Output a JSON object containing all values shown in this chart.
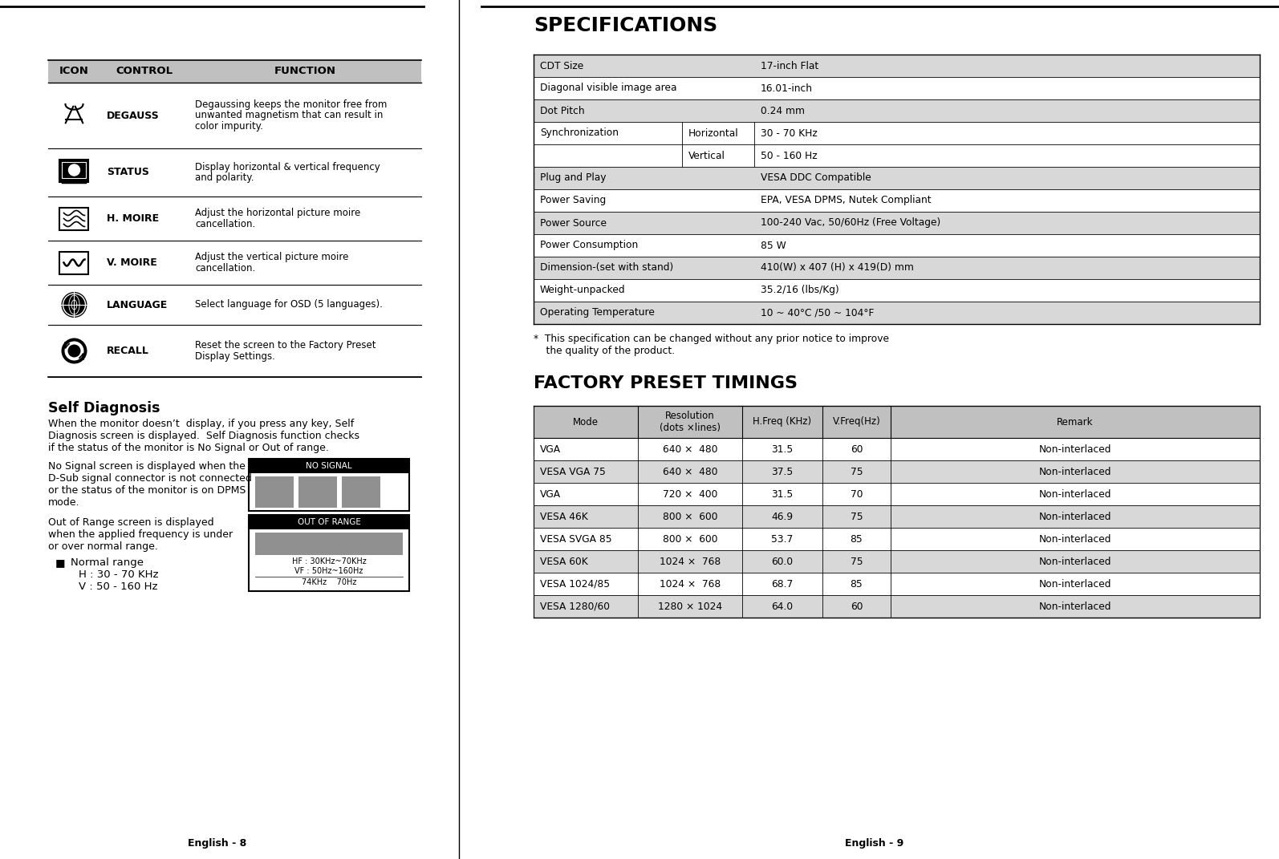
{
  "bg_color": "#ffffff",
  "header_bg": "#c0c0c0",
  "table_bg_alt": "#d8d8d8",
  "specs_title": "SPECIFICATIONS",
  "factory_title": "FACTORY PRESET TIMINGS",
  "self_diag_title": "Self Diagnosis",
  "page_left": "English - 8",
  "page_right": "English - 9",
  "icon_table_header": [
    "ICON",
    "CONTROL",
    "FUNCTION"
  ],
  "icon_rows": [
    {
      "control": "DEGAUSS",
      "function": "Degaussing keeps the monitor free from\nunwanted magnetism that can result in\ncolor impurity."
    },
    {
      "control": "STATUS",
      "function": "Display horizontal & vertical frequency\nand polarity."
    },
    {
      "control": "H. MOIRE",
      "function": "Adjust the horizontal picture moire\ncancellation."
    },
    {
      "control": "V. MOIRE",
      "function": "Adjust the vertical picture moire\ncancellation."
    },
    {
      "control": "LANGUAGE",
      "function": "Select language for OSD (5 languages)."
    },
    {
      "control": "RECALL",
      "function": "Reset the screen to the Factory Preset\nDisplay Settings."
    }
  ],
  "specs_rows": [
    {
      "col1": "CDT Size",
      "col2": "",
      "col3": "17-inch Flat",
      "shaded": true
    },
    {
      "col1": "Diagonal visible image area",
      "col2": "",
      "col3": "16.01-inch",
      "shaded": false
    },
    {
      "col1": "Dot Pitch",
      "col2": "",
      "col3": "0.24 mm",
      "shaded": true
    },
    {
      "col1": "Synchronization",
      "col2": "Horizontal",
      "col3": "30 - 70 KHz",
      "shaded": false
    },
    {
      "col1": "",
      "col2": "Vertical",
      "col3": "50 - 160 Hz",
      "shaded": false
    },
    {
      "col1": "Plug and Play",
      "col2": "",
      "col3": "VESA DDC Compatible",
      "shaded": true
    },
    {
      "col1": "Power Saving",
      "col2": "",
      "col3": "EPA, VESA DPMS, Nutek Compliant",
      "shaded": false
    },
    {
      "col1": "Power Source",
      "col2": "",
      "col3": "100-240 Vac, 50/60Hz (Free Voltage)",
      "shaded": true
    },
    {
      "col1": "Power Consumption",
      "col2": "",
      "col3": "85 W",
      "shaded": false
    },
    {
      "col1": "Dimension-(set with stand)",
      "col2": "",
      "col3": "410(W) x 407 (H) x 419(D) mm",
      "shaded": true
    },
    {
      "col1": "Weight-unpacked",
      "col2": "",
      "col3": "35.2/16 (lbs/Kg)",
      "shaded": false
    },
    {
      "col1": "Operating Temperature",
      "col2": "",
      "col3": "10 ~ 40°C /50 ~ 104°F",
      "shaded": true
    }
  ],
  "factory_rows": [
    {
      "mode": "VGA",
      "res": "640 ×  480",
      "hfreq": "31.5",
      "vfreq": "60",
      "remark": "Non-interlaced",
      "shaded": false
    },
    {
      "mode": "VESA VGA 75",
      "res": "640 ×  480",
      "hfreq": "37.5",
      "vfreq": "75",
      "remark": "Non-interlaced",
      "shaded": true
    },
    {
      "mode": "VGA",
      "res": "720 ×  400",
      "hfreq": "31.5",
      "vfreq": "70",
      "remark": "Non-interlaced",
      "shaded": false
    },
    {
      "mode": "VESA 46K",
      "res": "800 ×  600",
      "hfreq": "46.9",
      "vfreq": "75",
      "remark": "Non-interlaced",
      "shaded": true
    },
    {
      "mode": "VESA SVGA 85",
      "res": "800 ×  600",
      "hfreq": "53.7",
      "vfreq": "85",
      "remark": "Non-interlaced",
      "shaded": false
    },
    {
      "mode": "VESA 60K",
      "res": "1024 ×  768",
      "hfreq": "60.0",
      "vfreq": "75",
      "remark": "Non-interlaced",
      "shaded": true
    },
    {
      "mode": "VESA 1024/85",
      "res": "1024 ×  768",
      "hfreq": "68.7",
      "vfreq": "85",
      "remark": "Non-interlaced",
      "shaded": false
    },
    {
      "mode": "VESA 1280/60",
      "res": "1280 × 1024",
      "hfreq": "64.0",
      "vfreq": "60",
      "remark": "Non-interlaced",
      "shaded": true
    }
  ],
  "self_diag_text1": "When the monitor doesn’t  display, if you press any key, Self\nDiagnosis screen is displayed.  Self Diagnosis function checks\nif the status of the monitor is No Signal or Out of range.",
  "self_diag_text2": "No Signal screen is displayed when the\nD-Sub signal connector is not connected\nor the status of the monitor is on DPMS\nmode.",
  "self_diag_text3": "Out of Range screen is displayed\nwhen the applied frequency is under\nor over normal range.",
  "normal_range_text": "Normal range\nH : 30 - 70 KHz\nV : 50 - 160 Hz",
  "spec_note": "*  This specification can be changed without any prior notice to improve\n    the quality of the product.",
  "nosignal_label": "NO SIGNAL",
  "outofrange_label": "OUT OF RANGE",
  "outofrange_hf": "HF : 30KHz~70KHz",
  "outofrange_vf": "VF : 50Hz~160Hz",
  "outofrange_freq": "74KHz    70Hz"
}
